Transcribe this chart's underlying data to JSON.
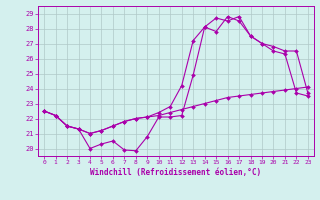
{
  "xlabel": "Windchill (Refroidissement éolien,°C)",
  "bg_color": "#d4f0ee",
  "line_color": "#aa00aa",
  "grid_color": "#b0c8c8",
  "xlim": [
    -0.5,
    23.5
  ],
  "ylim": [
    19.5,
    29.5
  ],
  "yticks": [
    20,
    21,
    22,
    23,
    24,
    25,
    26,
    27,
    28,
    29
  ],
  "xticks": [
    0,
    1,
    2,
    3,
    4,
    5,
    6,
    7,
    8,
    9,
    10,
    11,
    12,
    13,
    14,
    15,
    16,
    17,
    18,
    19,
    20,
    21,
    22,
    23
  ],
  "line1_x": [
    0,
    1,
    2,
    3,
    4,
    5,
    6,
    7,
    8,
    9,
    10,
    11,
    12,
    13,
    14,
    15,
    16,
    17,
    18,
    19,
    20,
    21,
    22,
    23
  ],
  "line1_y": [
    22.5,
    22.2,
    21.5,
    21.3,
    20.0,
    20.3,
    20.5,
    19.9,
    19.85,
    20.8,
    22.1,
    22.1,
    22.2,
    24.9,
    28.1,
    28.7,
    28.5,
    28.8,
    27.5,
    27.0,
    26.5,
    26.3,
    23.7,
    23.5
  ],
  "line2_x": [
    0,
    1,
    2,
    3,
    4,
    5,
    6,
    7,
    8,
    9,
    10,
    11,
    12,
    13,
    14,
    15,
    16,
    17,
    18,
    19,
    20,
    21,
    22,
    23
  ],
  "line2_y": [
    22.5,
    22.2,
    21.5,
    21.3,
    21.0,
    21.2,
    21.5,
    21.8,
    22.0,
    22.1,
    22.2,
    22.4,
    22.6,
    22.8,
    23.0,
    23.2,
    23.4,
    23.5,
    23.6,
    23.7,
    23.8,
    23.9,
    24.0,
    24.1
  ],
  "line3_x": [
    0,
    1,
    2,
    3,
    4,
    5,
    6,
    7,
    8,
    9,
    10,
    11,
    12,
    13,
    14,
    15,
    16,
    17,
    18,
    19,
    20,
    21,
    22,
    23
  ],
  "line3_y": [
    22.5,
    22.2,
    21.5,
    21.3,
    21.0,
    21.2,
    21.5,
    21.8,
    22.0,
    22.1,
    22.4,
    22.8,
    24.2,
    27.2,
    28.1,
    27.8,
    28.8,
    28.5,
    27.5,
    27.0,
    26.8,
    26.5,
    26.5,
    23.7
  ]
}
